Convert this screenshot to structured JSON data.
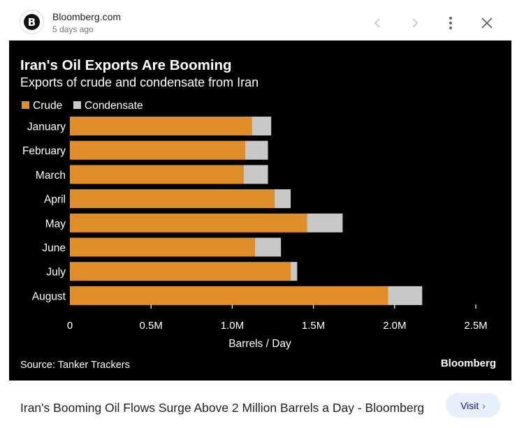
{
  "header": {
    "logo_letter": "B",
    "source": "Bloomberg.com",
    "age": "5 days ago"
  },
  "chart": {
    "title": "Iran's Oil Exports Are Booming",
    "subtitle": "Exports of crude and condensate from Iran",
    "source_note": "Source: Tanker Trackers",
    "brand": "Bloomberg"
  },
  "chart_data": {
    "type": "bar",
    "orientation": "horizontal",
    "stacked": true,
    "categories": [
      "January",
      "February",
      "March",
      "April",
      "May",
      "June",
      "July",
      "August"
    ],
    "series": [
      {
        "name": "Crude",
        "color": "#e08e2a",
        "values": [
          1.12,
          1.08,
          1.07,
          1.26,
          1.46,
          1.14,
          1.36,
          1.96
        ]
      },
      {
        "name": "Condensate",
        "color": "#c8c8c8",
        "values": [
          0.12,
          0.14,
          0.15,
          0.1,
          0.22,
          0.16,
          0.04,
          0.21
        ]
      }
    ],
    "xlabel": "Barrels / Day",
    "xlim": [
      0,
      2.5
    ],
    "xticks": [
      "0",
      "0.5M",
      "1.0M",
      "1.5M",
      "2.0M",
      "2.5M"
    ],
    "legend_position": "top-left",
    "grid": false
  },
  "footer": {
    "title": "Iran's Booming Oil Flows Surge Above 2 Million Barrels a Day - Bloomberg",
    "visit_label": "Visit"
  },
  "colors": {
    "crude": "#e08e2a",
    "condensate": "#c8c8c8",
    "chart_bg": "#000000"
  }
}
